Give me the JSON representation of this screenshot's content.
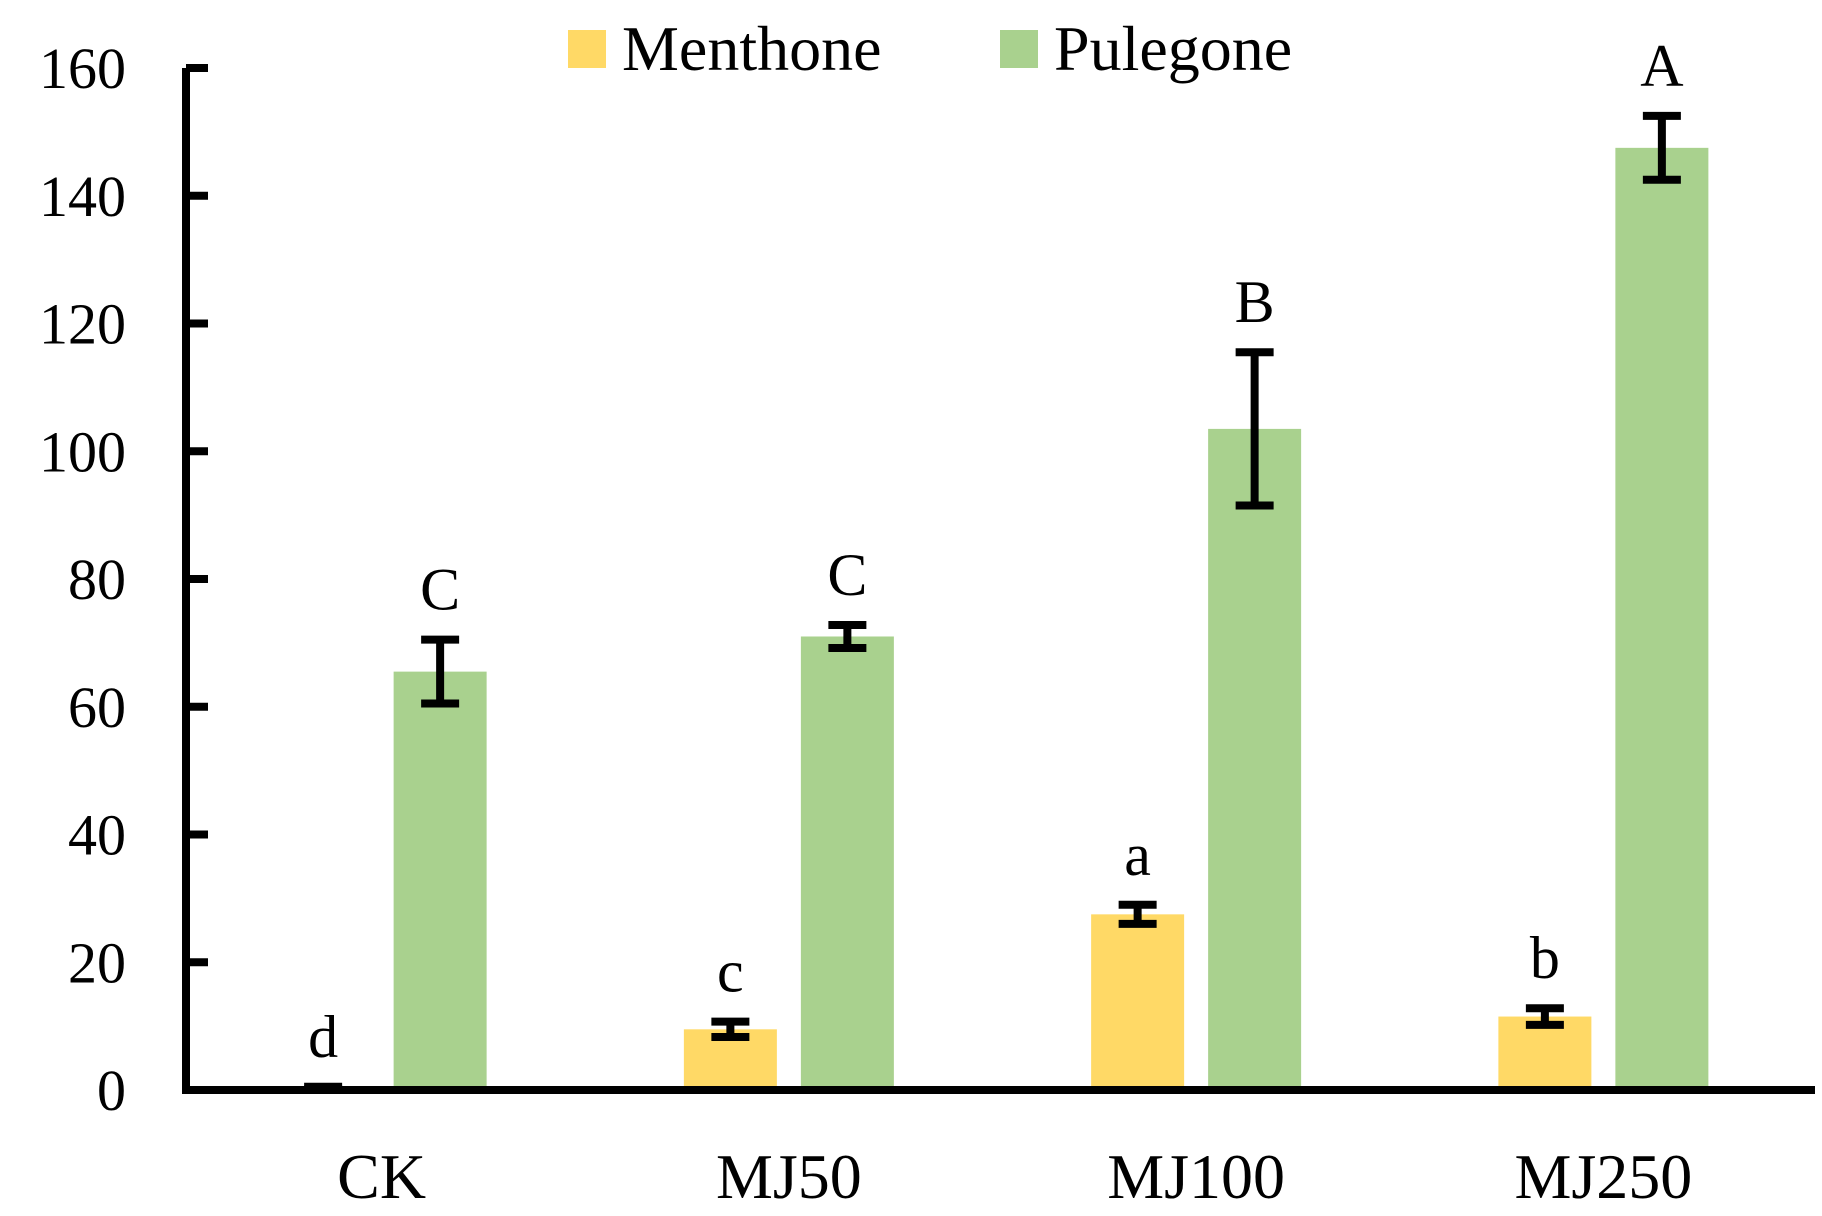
{
  "chart_data": {
    "type": "bar",
    "title": "",
    "xlabel": "",
    "ylabel": "",
    "ylim": [
      0,
      160
    ],
    "yticks": [
      0,
      20,
      40,
      60,
      80,
      100,
      120,
      140,
      160
    ],
    "grid": false,
    "legend_position": "top-center",
    "categories": [
      "CK",
      "MJ50",
      "MJ100",
      "MJ250"
    ],
    "series": [
      {
        "name": "Menthone",
        "color": "#FFD966",
        "values": [
          0.3,
          9.5,
          27.5,
          11.5
        ],
        "errors": [
          0.2,
          1.2,
          1.5,
          1.3
        ],
        "letters": [
          "d",
          "c",
          "a",
          "b"
        ]
      },
      {
        "name": "Pulegone",
        "color": "#A9D18E",
        "values": [
          65.5,
          71,
          103.5,
          147.5
        ],
        "errors": [
          5,
          1.8,
          12,
          5
        ]
      }
    ],
    "pulegone_letters": [
      "C",
      "C",
      "B",
      "A"
    ]
  }
}
